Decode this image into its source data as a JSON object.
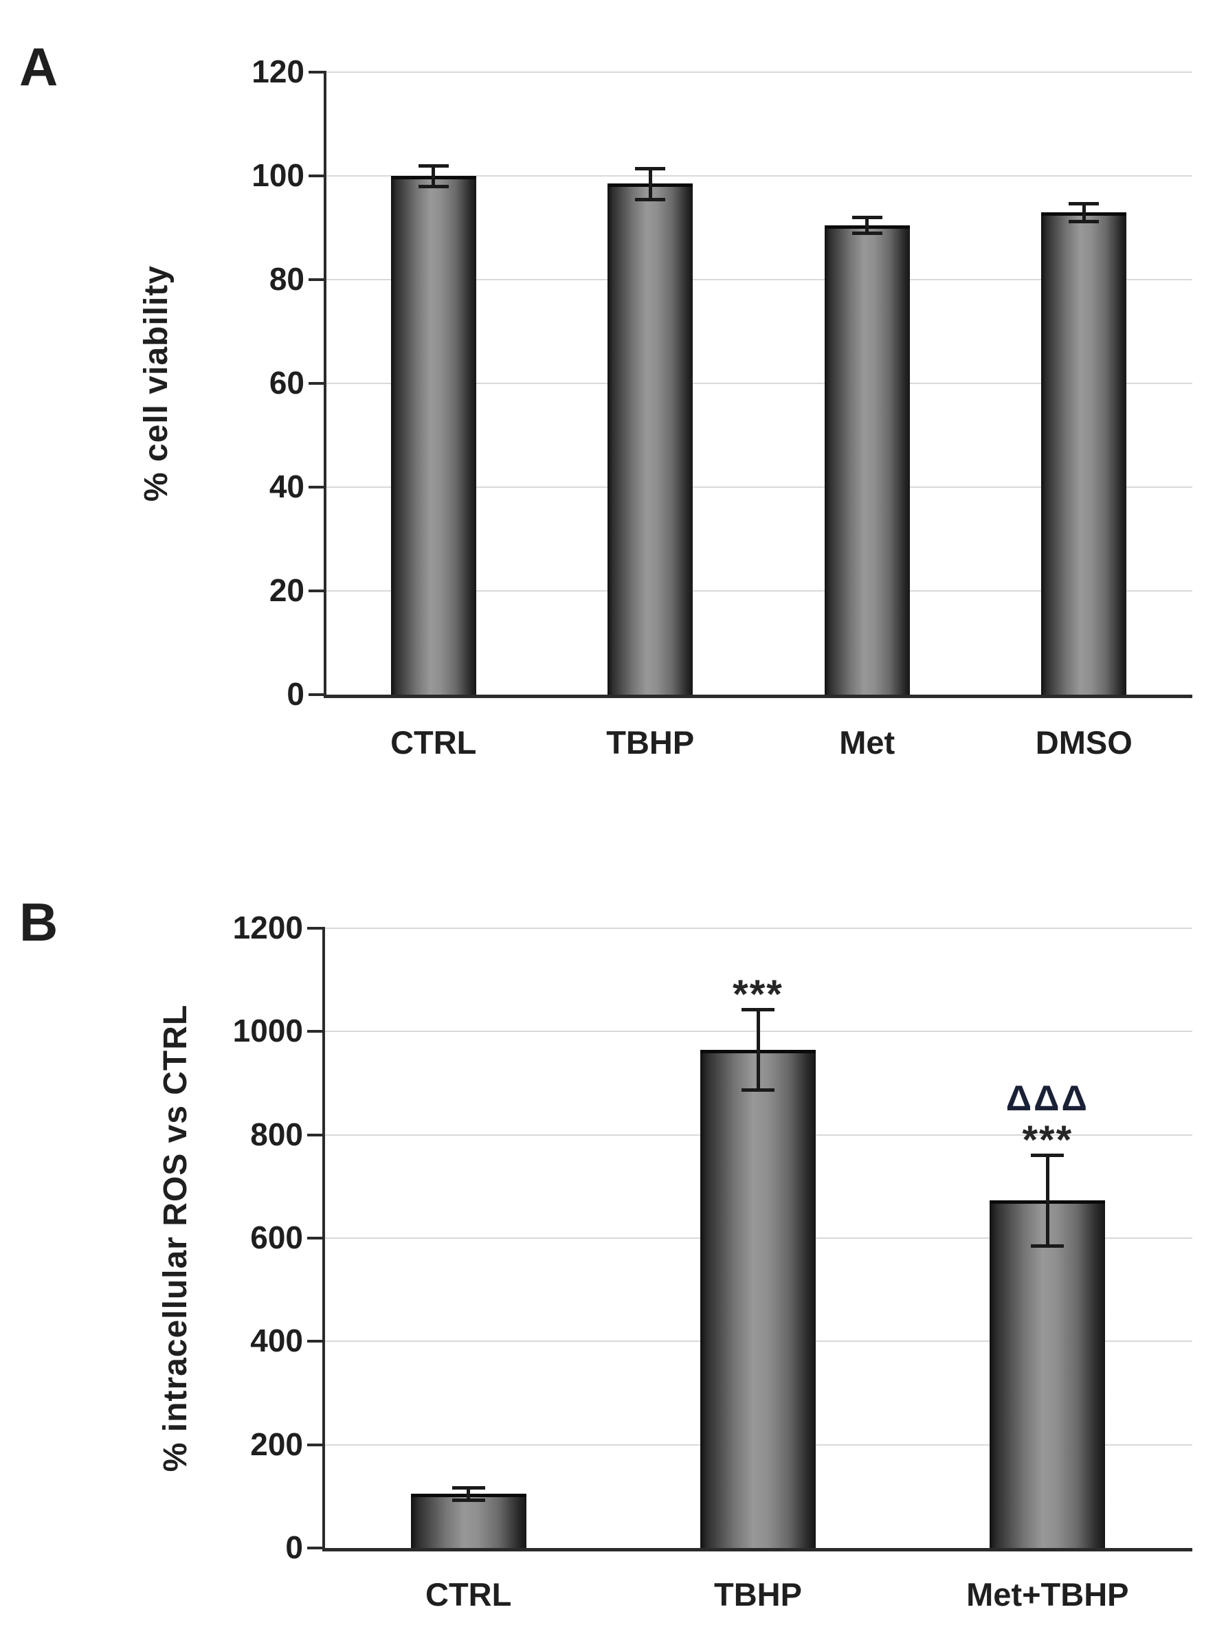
{
  "figure": {
    "background": "#ffffff"
  },
  "chart_data": [
    {
      "panel_label": "A",
      "type": "bar",
      "title": "",
      "xlabel": "",
      "ylabel": "% cell viability",
      "ylim": [
        0,
        120
      ],
      "ytick_step": 20,
      "ytick_labels": [
        "0",
        "20",
        "40",
        "60",
        "80",
        "100",
        "120"
      ],
      "categories": [
        "CTRL",
        "TBHP",
        "Met",
        "DMSO"
      ],
      "values": [
        100,
        98.5,
        90.5,
        93
      ],
      "errors": [
        2,
        3,
        1.5,
        1.7
      ],
      "annotations": [
        [],
        [],
        [],
        []
      ],
      "grid": "horizontal",
      "legend": "none"
    },
    {
      "panel_label": "B",
      "type": "bar",
      "title": "",
      "xlabel": "",
      "ylabel": "% intracellular ROS vs CTRL",
      "ylim": [
        0,
        1200
      ],
      "ytick_step": 200,
      "ytick_labels": [
        "0",
        "200",
        "400",
        "600",
        "800",
        "1000",
        "1200"
      ],
      "categories": [
        "CTRL",
        "TBHP",
        "Met+TBHP"
      ],
      "values": [
        105,
        965,
        673
      ],
      "errors": [
        12,
        78,
        88
      ],
      "annotations": [
        [],
        [
          "***"
        ],
        [
          "ΔΔΔ",
          "***"
        ]
      ],
      "grid": "horizontal",
      "legend": "none"
    }
  ],
  "colors": {
    "background": "#ffffff",
    "gridline": "#d9d9d9",
    "axis": "#2b2b2b",
    "text": "#1f1f1f",
    "bar_edge": "#141414",
    "bar_highlight": "#989898",
    "bar_top_cap": "#0a0a0a",
    "error_bar": "#1a1a1a",
    "annotation_star": "#262626",
    "annotation_delta": "#1a2036"
  }
}
